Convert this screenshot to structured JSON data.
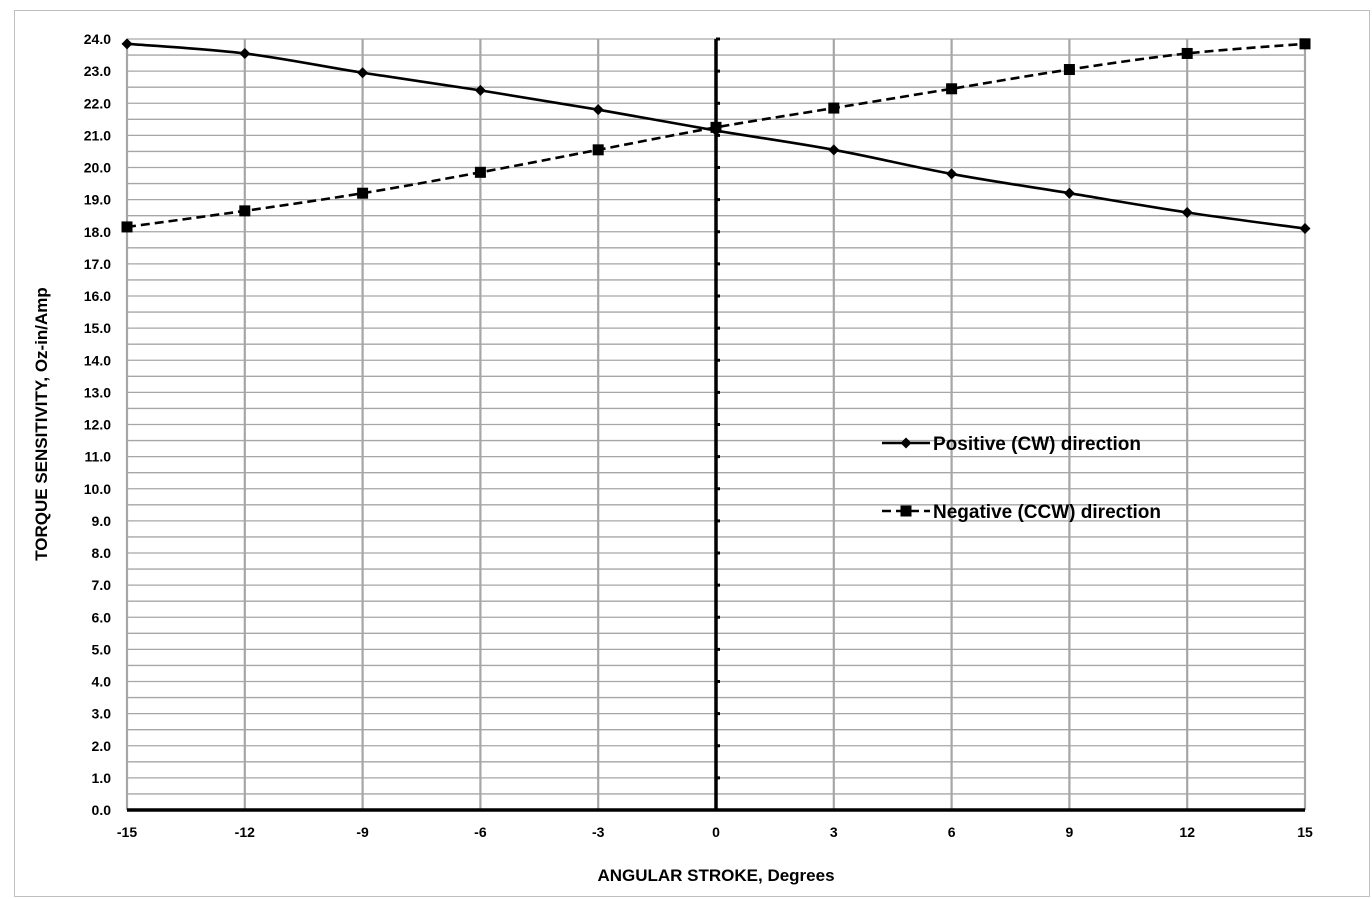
{
  "chart_data": {
    "type": "line",
    "xlabel": "ANGULAR STROKE, Degrees",
    "ylabel": "TORQUE SENSITIVITY, Oz-in/Amp",
    "xlim": [
      -15,
      15
    ],
    "ylim": [
      0,
      24
    ],
    "x_ticks": [
      -15,
      -12,
      -9,
      -6,
      -3,
      0,
      3,
      6,
      9,
      12,
      15
    ],
    "y_tick_step": 1.0,
    "y_minor_step": 0.5,
    "grid": true,
    "legend_position": "right-middle",
    "series": [
      {
        "name": "Positive (CW) direction",
        "marker": "diamond",
        "line_style": "solid",
        "color": "#000000",
        "x": [
          -15,
          -12,
          -9,
          -6,
          -3,
          0,
          3,
          6,
          9,
          12,
          15
        ],
        "y": [
          23.85,
          23.55,
          22.95,
          22.4,
          21.8,
          21.15,
          20.55,
          19.8,
          19.2,
          18.6,
          18.1
        ]
      },
      {
        "name": "Negative (CCW) direction",
        "marker": "square",
        "line_style": "dashed",
        "color": "#000000",
        "x": [
          -15,
          -12,
          -9,
          -6,
          -3,
          0,
          3,
          6,
          9,
          12,
          15
        ],
        "y": [
          18.15,
          18.65,
          19.2,
          19.85,
          20.55,
          21.25,
          21.85,
          22.45,
          23.05,
          23.55,
          23.85
        ]
      }
    ]
  }
}
